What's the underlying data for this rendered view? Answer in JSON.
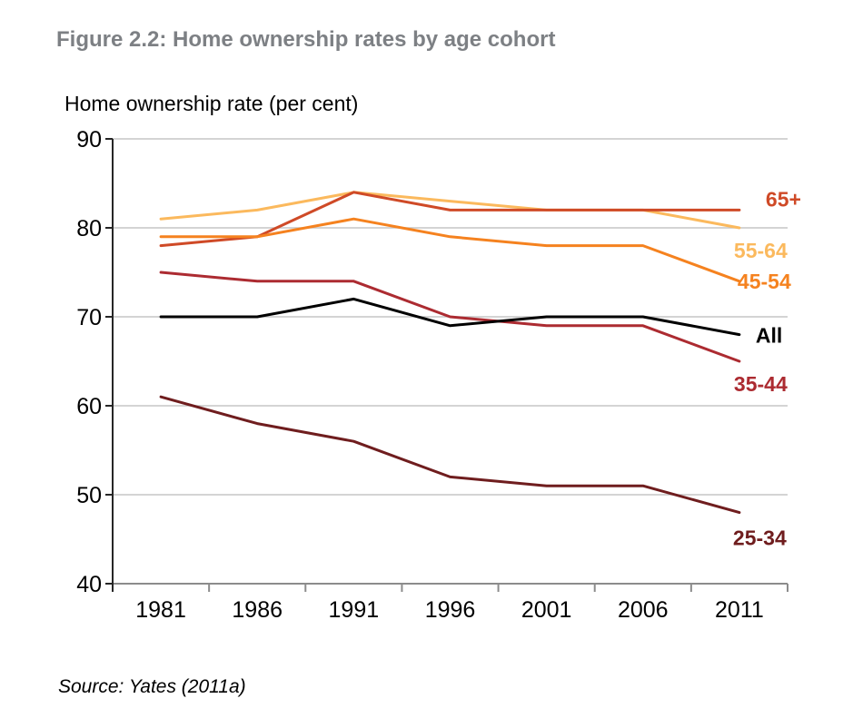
{
  "figure": {
    "title": "Figure 2.2: Home ownership rates by age cohort",
    "y_axis_title": "Home ownership rate (per cent)",
    "source": "Source: Yates (2011a)"
  },
  "chart_data": {
    "type": "line",
    "x": [
      "1981",
      "1986",
      "1991",
      "1996",
      "2001",
      "2006",
      "2011"
    ],
    "series": [
      {
        "name": "65+",
        "color": "#cf4a27",
        "values": [
          78,
          79,
          84,
          82,
          82,
          82,
          82
        ],
        "label_offset": {
          "dx": 29,
          "dy": -4
        }
      },
      {
        "name": "55-64",
        "color": "#fbb95d",
        "values": [
          81,
          82,
          84,
          83,
          82,
          82,
          80
        ],
        "label_offset": {
          "dx": -6,
          "dy": 33
        }
      },
      {
        "name": "45-54",
        "color": "#f5821f",
        "values": [
          79,
          79,
          81,
          79,
          78,
          78,
          74
        ],
        "label_offset": {
          "dx": -2,
          "dy": 8
        }
      },
      {
        "name": "All",
        "color": "#000000",
        "values": [
          70,
          70,
          72,
          69,
          70,
          70,
          68
        ],
        "label_offset": {
          "dx": 18,
          "dy": 9
        }
      },
      {
        "name": "35-44",
        "color": "#ac2b31",
        "values": [
          75,
          74,
          74,
          70,
          69,
          69,
          65
        ],
        "label_offset": {
          "dx": -6,
          "dy": 33
        }
      },
      {
        "name": "25-34",
        "color": "#6f1d1e",
        "values": [
          61,
          58,
          56,
          52,
          51,
          51,
          48
        ],
        "label_offset": {
          "dx": -7,
          "dy": 36
        }
      }
    ],
    "ylim": [
      40,
      90
    ],
    "y_ticks": [
      90,
      80,
      70,
      60,
      50,
      40
    ],
    "grid": "horizontal",
    "legend_position": "right-of-line-ends",
    "colors": {
      "gridline": "#c6c6c6",
      "x_axis": "#8c8c8c",
      "y_axis": "#262626"
    }
  }
}
